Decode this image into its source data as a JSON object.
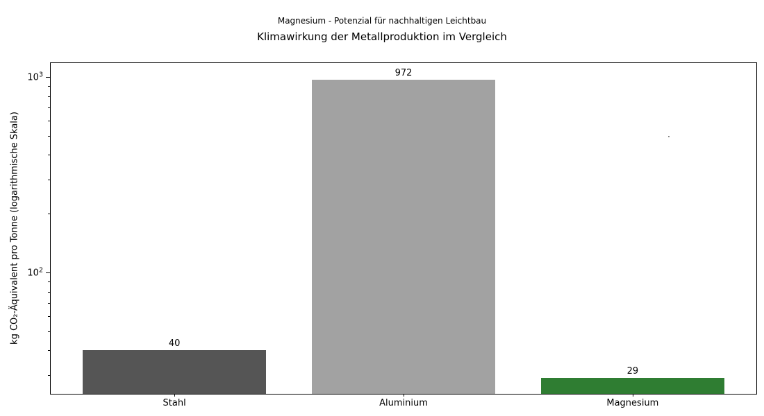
{
  "chart_data": {
    "type": "bar",
    "title": "Klimawirkung der Metallproduktion im Vergleich",
    "subtitle": "Magnesium - Potenzial für nachhaltigen Leichtbau",
    "xlabel": "",
    "ylabel": "kg CO₂-Äquivalent pro Tonne (logarithmische Skala)",
    "yscale": "log",
    "grid": false,
    "legend": null,
    "categories": [
      "Stahl",
      "Aluminium",
      "Magnesium"
    ],
    "values": [
      40,
      972,
      29
    ],
    "value_labels": [
      "40",
      "972",
      "29"
    ],
    "bar_colors": [
      "#555555",
      "#a2a2a2",
      "#2f7d32"
    ],
    "ylim": [
      24,
      1180
    ],
    "xlim": [
      -0.54,
      2.54
    ],
    "bar_width_fraction": 0.8,
    "yticks": [
      {
        "value": 100,
        "base": "10",
        "exp": "2",
        "label": "10²"
      },
      {
        "value": 1000,
        "base": "10",
        "exp": "3",
        "label": "10³"
      }
    ],
    "minor_yticks": [
      30,
      40,
      50,
      60,
      70,
      80,
      90,
      200,
      300,
      400,
      500,
      600,
      700,
      800,
      900
    ]
  }
}
